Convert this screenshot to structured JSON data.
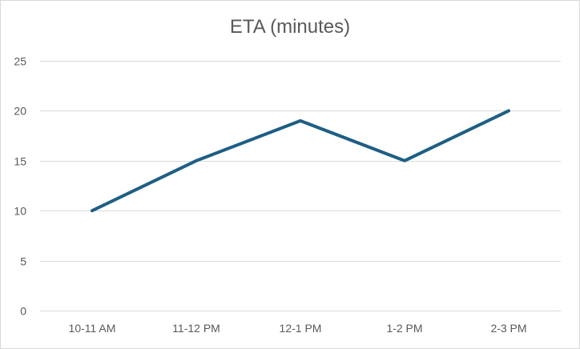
{
  "chart_data": {
    "type": "line",
    "title": "ETA (minutes)",
    "xlabel": "",
    "ylabel": "",
    "categories": [
      "10-11 AM",
      "11-12 PM",
      "12-1 PM",
      "1-2 PM",
      "2-3 PM"
    ],
    "series": [
      {
        "values": [
          10,
          15,
          19,
          15,
          20
        ],
        "color": "#1e5e84"
      }
    ],
    "ylim": [
      0,
      25
    ],
    "yticks": [
      0,
      5,
      10,
      15,
      20,
      25
    ],
    "grid": true,
    "legend": "none"
  }
}
